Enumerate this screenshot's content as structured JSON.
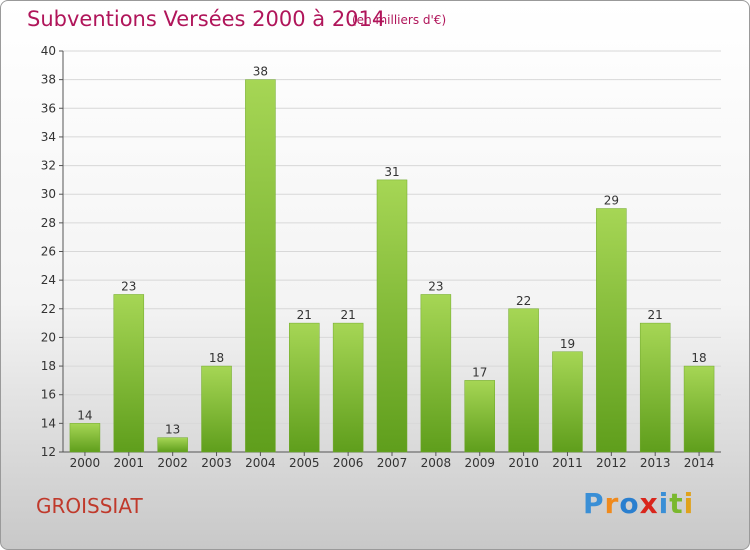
{
  "header": {
    "title": "Subventions Versées 2000 à 2014",
    "unit_note": "(en milliers d'€)"
  },
  "footer": {
    "commune": "GROISSIAT",
    "logo_text": "Proxiti",
    "logo_colors": [
      "#3a8fd6",
      "#f08a1c",
      "#2a7fcf",
      "#d9261c",
      "#3a8fd6",
      "#7ab82e",
      "#e0a21c"
    ]
  },
  "colors": {
    "bar_light": "#a6d655",
    "bar_dark": "#5f9e1c",
    "grid": "#d8d8d8",
    "title": "#b0155a"
  },
  "chart_data": {
    "type": "bar",
    "categories": [
      "2000",
      "2001",
      "2002",
      "2003",
      "2004",
      "2005",
      "2006",
      "2007",
      "2008",
      "2009",
      "2010",
      "2011",
      "2012",
      "2013",
      "2014"
    ],
    "values": [
      14,
      23,
      13,
      18,
      38,
      21,
      21,
      31,
      23,
      17,
      22,
      19,
      29,
      21,
      18
    ],
    "yticks": [
      "12",
      "14",
      "16",
      "18",
      "20",
      "22",
      "24",
      "26",
      "28",
      "30",
      "32",
      "34",
      "36",
      "38",
      "40"
    ],
    "ylim": [
      12,
      40
    ],
    "grid": true,
    "data_labels": true
  }
}
